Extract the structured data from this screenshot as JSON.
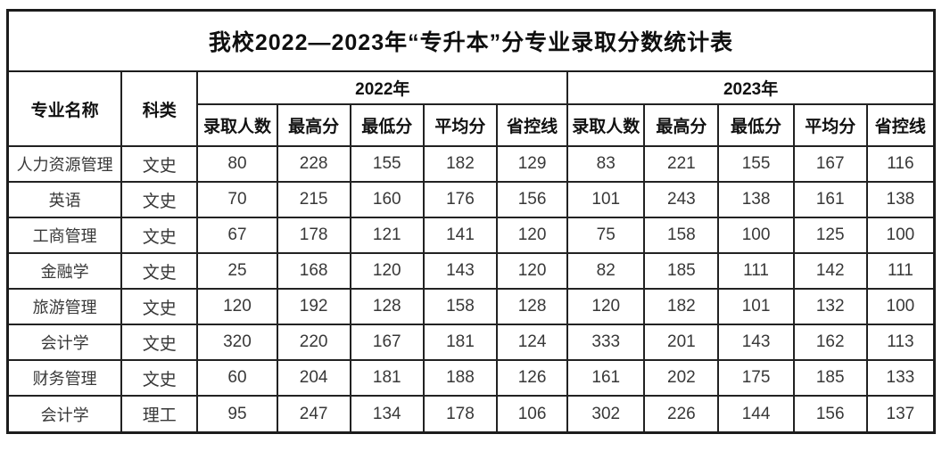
{
  "title": "我校2022—2023年“专升本”分专业录取分数统计表",
  "table": {
    "corner_headers": [
      {
        "label": "专业名称"
      },
      {
        "label": "科类"
      }
    ],
    "year_groups": [
      {
        "year": "2022年",
        "columns": [
          "录取人数",
          "最高分",
          "最低分",
          "平均分",
          "省控线"
        ]
      },
      {
        "year": "2023年",
        "columns": [
          "录取人数",
          "最高分",
          "最低分",
          "平均分",
          "省控线"
        ]
      }
    ],
    "rows": [
      {
        "major": "人力资源管理",
        "category": "文史",
        "y2022": [
          "80",
          "228",
          "155",
          "182",
          "129"
        ],
        "y2023": [
          "83",
          "221",
          "155",
          "167",
          "116"
        ]
      },
      {
        "major": "英语",
        "category": "文史",
        "y2022": [
          "70",
          "215",
          "160",
          "176",
          "156"
        ],
        "y2023": [
          "101",
          "243",
          "138",
          "161",
          "138"
        ]
      },
      {
        "major": "工商管理",
        "category": "文史",
        "y2022": [
          "67",
          "178",
          "121",
          "141",
          "120"
        ],
        "y2023": [
          "75",
          "158",
          "100",
          "125",
          "100"
        ]
      },
      {
        "major": "金融学",
        "category": "文史",
        "y2022": [
          "25",
          "168",
          "120",
          "143",
          "120"
        ],
        "y2023": [
          "82",
          "185",
          "111",
          "142",
          "111"
        ]
      },
      {
        "major": "旅游管理",
        "category": "文史",
        "y2022": [
          "120",
          "192",
          "128",
          "158",
          "128"
        ],
        "y2023": [
          "120",
          "182",
          "101",
          "132",
          "100"
        ]
      },
      {
        "major": "会计学",
        "category": "文史",
        "y2022": [
          "320",
          "220",
          "167",
          "181",
          "124"
        ],
        "y2023": [
          "333",
          "201",
          "143",
          "162",
          "113"
        ]
      },
      {
        "major": "财务管理",
        "category": "文史",
        "y2022": [
          "60",
          "204",
          "181",
          "188",
          "126"
        ],
        "y2023": [
          "161",
          "202",
          "175",
          "185",
          "133"
        ]
      },
      {
        "major": "会计学",
        "category": "理工",
        "y2022": [
          "95",
          "247",
          "134",
          "178",
          "106"
        ],
        "y2023": [
          "302",
          "226",
          "144",
          "156",
          "137"
        ]
      }
    ]
  },
  "chart_data": {
    "type": "table",
    "title": "我校2022—2023年“专升本”分专业录取分数统计表",
    "columns": [
      "专业名称",
      "科类",
      "2022年录取人数",
      "2022年最高分",
      "2022年最低分",
      "2022年平均分",
      "2022年省控线",
      "2023年录取人数",
      "2023年最高分",
      "2023年最低分",
      "2023年平均分",
      "2023年省控线"
    ],
    "rows": [
      [
        "人力资源管理",
        "文史",
        80,
        228,
        155,
        182,
        129,
        83,
        221,
        155,
        167,
        116
      ],
      [
        "英语",
        "文史",
        70,
        215,
        160,
        176,
        156,
        101,
        243,
        138,
        161,
        138
      ],
      [
        "工商管理",
        "文史",
        67,
        178,
        121,
        141,
        120,
        75,
        158,
        100,
        125,
        100
      ],
      [
        "金融学",
        "文史",
        25,
        168,
        120,
        143,
        120,
        82,
        185,
        111,
        142,
        111
      ],
      [
        "旅游管理",
        "文史",
        120,
        192,
        128,
        158,
        128,
        120,
        182,
        101,
        132,
        100
      ],
      [
        "会计学",
        "文史",
        320,
        220,
        167,
        181,
        124,
        333,
        201,
        143,
        162,
        113
      ],
      [
        "财务管理",
        "文史",
        60,
        204,
        181,
        188,
        126,
        161,
        202,
        175,
        185,
        133
      ],
      [
        "会计学",
        "理工",
        95,
        247,
        134,
        178,
        106,
        302,
        226,
        144,
        156,
        137
      ]
    ]
  },
  "colors": {
    "border": "#1c1c1c",
    "header_text": "#111111",
    "cell_text": "#383838",
    "background": "#ffffff"
  }
}
